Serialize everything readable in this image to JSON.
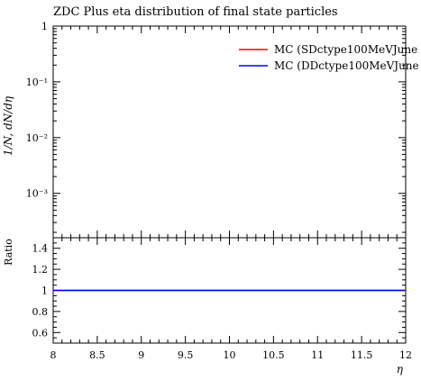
{
  "title": "ZDC Plus eta distribution of final state particles",
  "top_panel": {
    "ylabel": "1/N, dN/dη",
    "y_scale": "log",
    "ylim": [
      0.00016,
      1.0
    ],
    "y_tick_labels": [
      "1",
      "10⁻¹",
      "10⁻²",
      "10⁻³"
    ]
  },
  "ratio_panel": {
    "ylabel": "Ratio",
    "ylim": [
      0.5,
      1.5
    ],
    "y_tick_labels": [
      "1.4",
      "1.2",
      "1",
      "0.8",
      "0.6"
    ]
  },
  "xlabel": "η",
  "x_tick_labels": [
    "8",
    "8.5",
    "9",
    "9.5",
    "10",
    "10.5",
    "11",
    "11.5",
    "12"
  ],
  "colors": {
    "series_1": "#ff0000",
    "series_2": "#0000ff"
  },
  "chart_data": {
    "type": "line",
    "title": "ZDC Plus eta distribution of final state particles",
    "xlabel": "η",
    "ylabel": "1/N, dN/dη",
    "xlim": [
      8,
      12
    ],
    "y_scale": "log",
    "ylim": [
      0.00016,
      1.0
    ],
    "grid": false,
    "legend_position": "top-right",
    "series": [
      {
        "name": "MC (SDctype100MeVJune",
        "color": "#ff0000",
        "x": [],
        "values": []
      },
      {
        "name": "MC (DDctype100MeVJune",
        "color": "#0000ff",
        "x": [],
        "values": []
      }
    ],
    "ratio": {
      "ylabel": "Ratio",
      "ylim": [
        0.5,
        1.5
      ],
      "x": [
        8,
        12
      ],
      "series": [
        {
          "name": "MC (SDctype100MeVJune",
          "color": "#ff0000",
          "values": [
            1,
            1
          ]
        },
        {
          "name": "MC (DDctype100MeVJune",
          "color": "#0000ff",
          "values": [
            1,
            1
          ]
        }
      ]
    }
  }
}
